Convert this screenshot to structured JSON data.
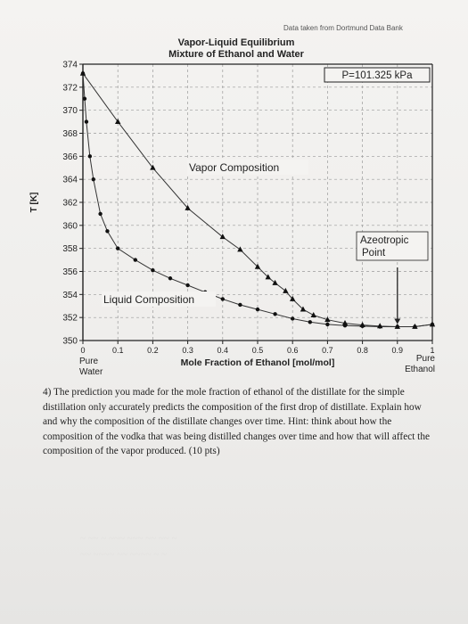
{
  "source_note": "Data taken from Dortmund Data Bank",
  "chart_data": {
    "type": "line",
    "title": "Vapor-Liquid Equilibrium",
    "subtitle": "Mixture of Ethanol and Water",
    "xlabel": "Mole Fraction of Ethanol [mol/mol]",
    "ylabel": "T [K]",
    "xlim": [
      0,
      1
    ],
    "ylim": [
      350,
      374
    ],
    "xticks": [
      "0",
      "0.1",
      "0.2",
      "0.3",
      "0.4",
      "0.5",
      "0.6",
      "0.7",
      "0.8",
      "0.9",
      "1"
    ],
    "yticks": [
      "350",
      "352",
      "354",
      "356",
      "358",
      "360",
      "362",
      "364",
      "366",
      "368",
      "370",
      "372",
      "374"
    ],
    "x_end_labels": {
      "left": [
        "Pure",
        "Water"
      ],
      "right": [
        "Pure",
        "Ethanol"
      ]
    },
    "grid": true,
    "series": [
      {
        "name": "Vapor Composition",
        "marker": "triangle",
        "x": [
          0.0,
          0.1,
          0.2,
          0.3,
          0.4,
          0.45,
          0.5,
          0.53,
          0.55,
          0.58,
          0.6,
          0.63,
          0.66,
          0.7,
          0.75,
          0.8,
          0.85,
          0.9,
          0.95,
          1.0
        ],
        "y": [
          373.2,
          369.0,
          365.0,
          361.5,
          359.0,
          357.9,
          356.4,
          355.5,
          355.0,
          354.3,
          353.6,
          352.7,
          352.2,
          351.8,
          351.5,
          351.35,
          351.25,
          351.2,
          351.2,
          351.4
        ]
      },
      {
        "name": "Liquid Composition",
        "marker": "circle",
        "x": [
          0.0,
          0.005,
          0.01,
          0.02,
          0.03,
          0.05,
          0.07,
          0.1,
          0.15,
          0.2,
          0.25,
          0.3,
          0.35,
          0.4,
          0.45,
          0.5,
          0.55,
          0.6,
          0.65,
          0.7,
          0.75,
          0.8,
          0.85,
          0.9,
          0.95,
          1.0
        ],
        "y": [
          373.2,
          371.0,
          369.0,
          366.0,
          364.0,
          361.0,
          359.5,
          358.0,
          357.0,
          356.1,
          355.4,
          354.8,
          354.2,
          353.6,
          353.1,
          352.7,
          352.3,
          351.9,
          351.6,
          351.4,
          351.3,
          351.25,
          351.2,
          351.2,
          351.2,
          351.4
        ]
      }
    ],
    "annotations": [
      {
        "text": "P=101.325 kPa"
      },
      {
        "text": "Vapor Composition"
      },
      {
        "text": "Liquid Composition"
      },
      {
        "text": "Azeotropic Point"
      }
    ]
  },
  "question": {
    "lines": [
      "4) The prediction you made for the mole fraction of ethanol of the distillate for the simple",
      "distillation only accurately predicts the composition of the first drop of distillate. Explain how",
      "and why the composition of the distillate changes over time. Hint: think about how the",
      "composition of the vodka that was being distilled changes over time and how that will affect the",
      "composition of the vapor produced. (10 pts)"
    ]
  }
}
